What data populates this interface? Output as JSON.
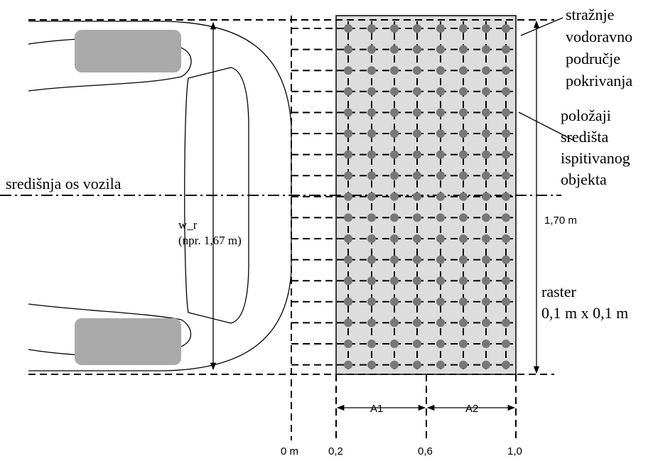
{
  "labels": {
    "coverage_area": [
      "stražnje",
      "vodoravno",
      "područje",
      "pokrivanja"
    ],
    "test_object_positions": [
      "položaji",
      "središta",
      "ispitivanog",
      "objekta"
    ],
    "vehicle_axis": "središnja os vozila",
    "width_name": "w_r",
    "width_example": "(npr. 1,67 m)",
    "coverage_width": "1,70 m",
    "raster": [
      "raster",
      "0,1 m x 0,1 m"
    ],
    "zone_a1": "A1",
    "zone_a2": "A2",
    "distances": [
      "0 m",
      "0,2",
      "0,6",
      "1,0"
    ]
  }
}
